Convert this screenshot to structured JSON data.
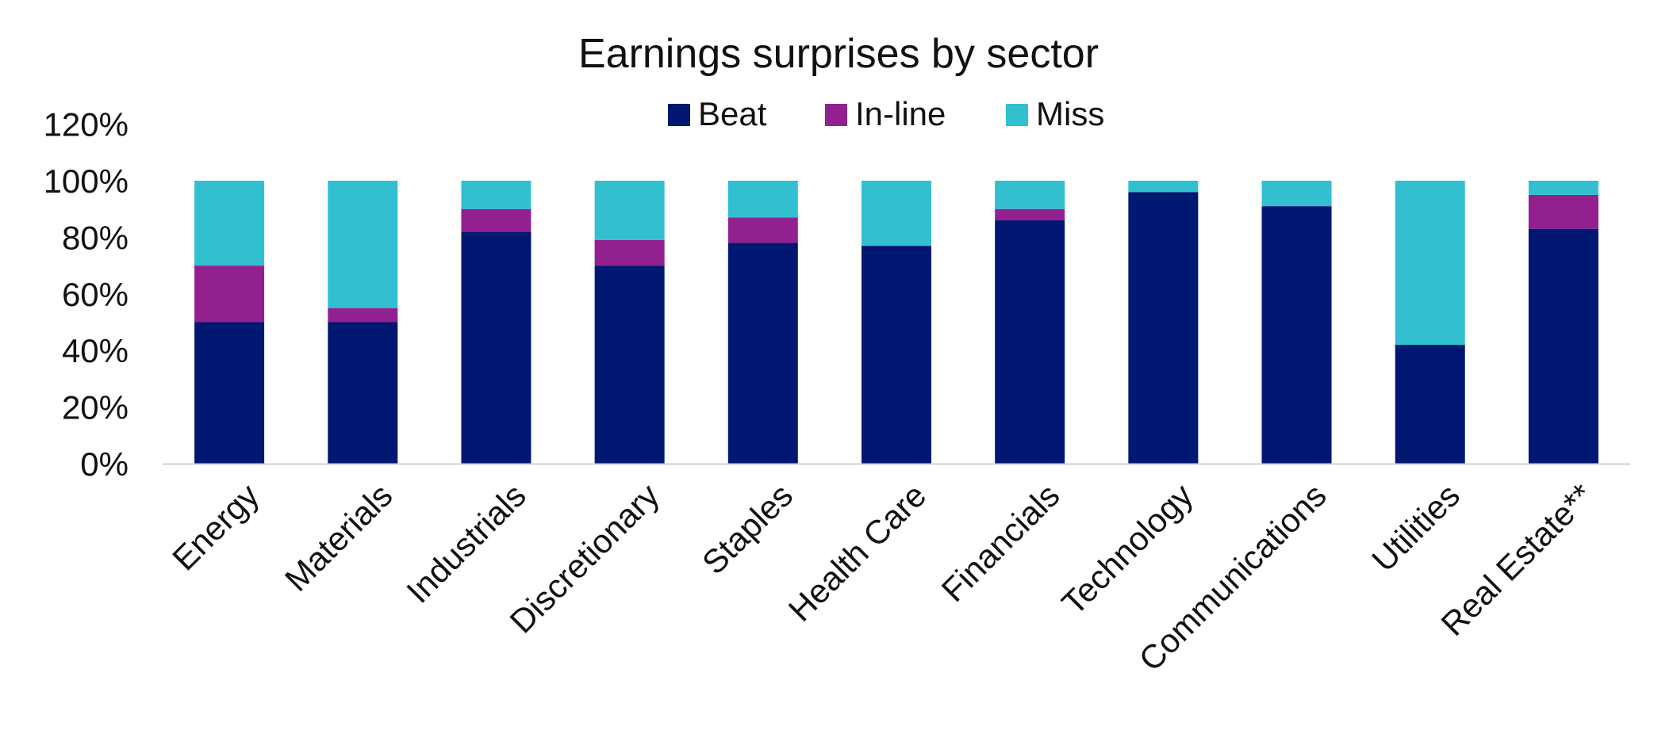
{
  "chart_data": {
    "type": "bar",
    "stacked": true,
    "title": "Earnings surprises by sector",
    "categories": [
      "Energy",
      "Materials",
      "Industrials",
      "Discretionary",
      "Staples",
      "Health Care",
      "Financials",
      "Technology",
      "Communications",
      "Utilities",
      "Real Estate**"
    ],
    "series": [
      {
        "name": "Beat",
        "color": "#001871",
        "values": [
          50,
          50,
          82,
          70,
          78,
          77,
          86,
          96,
          91,
          42,
          83
        ]
      },
      {
        "name": "In-line",
        "color": "#93208F",
        "values": [
          20,
          5,
          8,
          9,
          9,
          0,
          4,
          0,
          0,
          0,
          12
        ]
      },
      {
        "name": "Miss",
        "color": "#32BFD0",
        "values": [
          30,
          45,
          10,
          21,
          13,
          23,
          10,
          4,
          9,
          58,
          5
        ]
      }
    ],
    "ylim": [
      0,
      120
    ],
    "yticks": [
      0,
      20,
      40,
      60,
      80,
      100,
      120
    ],
    "ytick_labels": [
      "0%",
      "20%",
      "40%",
      "60%",
      "80%",
      "100%",
      "120%"
    ],
    "xlabel": "",
    "ylabel": "",
    "legend_position": "top-center",
    "grid": false
  }
}
